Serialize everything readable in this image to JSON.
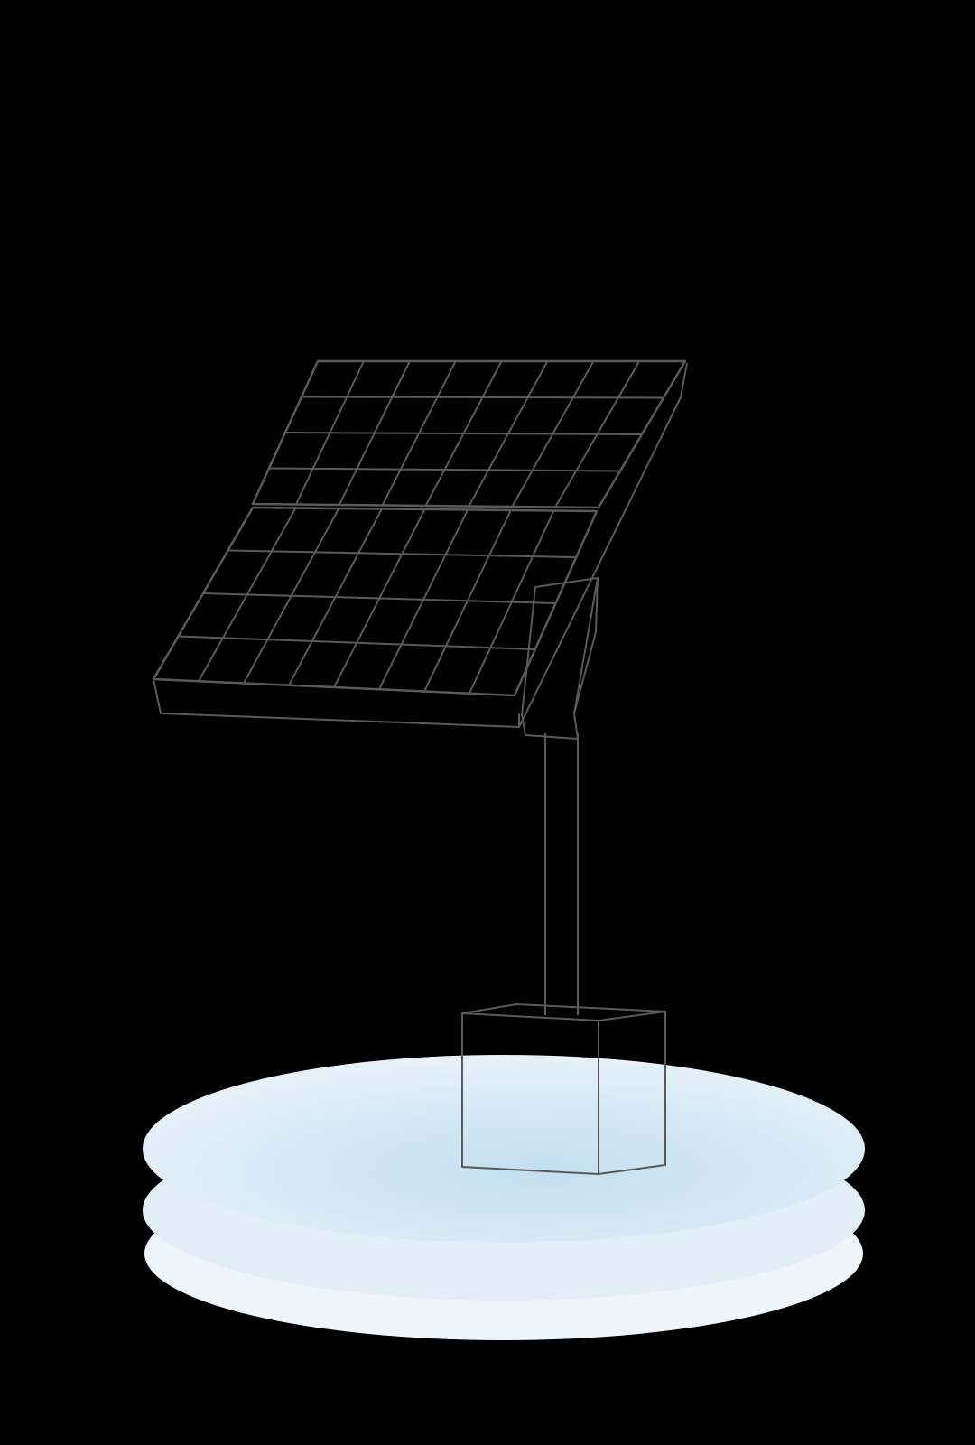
{
  "illustration": {
    "subject": "solar-panel-on-pole",
    "panel": {
      "sections": 2,
      "columns": 8,
      "rows_per_section": 4
    },
    "colors": {
      "background": "#000000",
      "stroke": "#5a5a5a",
      "platform_light": "#eef5fa",
      "platform_mid": "#d8e9f4",
      "platform_deep": "#c6e0f0"
    }
  }
}
